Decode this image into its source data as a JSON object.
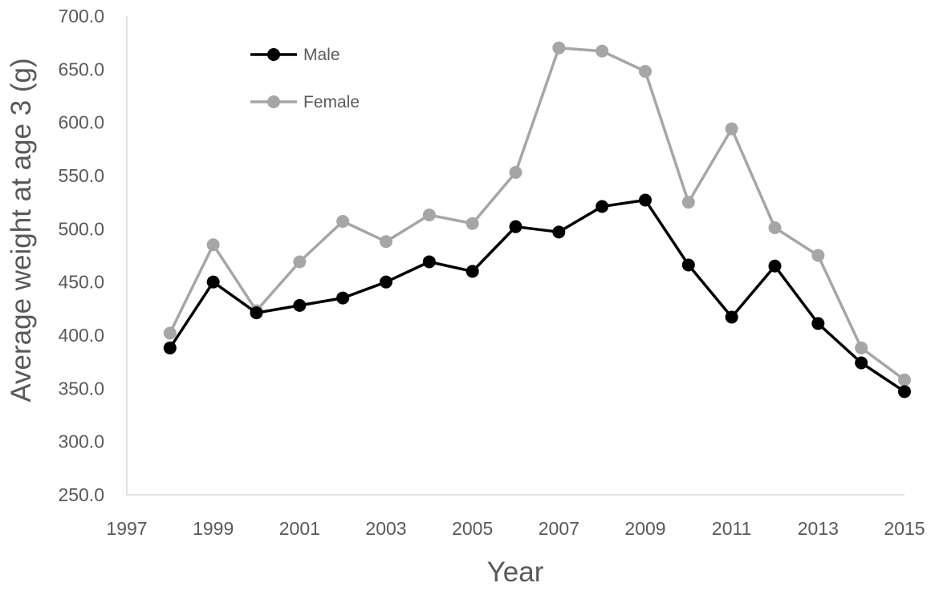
{
  "chart_data": {
    "type": "line",
    "title": "",
    "xlabel": "Year",
    "ylabel": "Average weight at age 3  (g)",
    "xlim": [
      1997,
      2015
    ],
    "ylim": [
      250,
      700
    ],
    "xticks": [
      1997,
      1999,
      2001,
      2003,
      2005,
      2007,
      2009,
      2011,
      2013,
      2015
    ],
    "yticks": [
      250,
      300,
      350,
      400,
      450,
      500,
      550,
      600,
      650,
      700
    ],
    "xtick_labels": [
      "1997",
      "1999",
      "2001",
      "2003",
      "2005",
      "2007",
      "2009",
      "2011",
      "2013",
      "2015"
    ],
    "ytick_labels": [
      "250.0",
      "300.0",
      "350.0",
      "400.0",
      "450.0",
      "500.0",
      "550.0",
      "600.0",
      "650.0",
      "700.0"
    ],
    "grid": false,
    "legend_position": "top-left",
    "x": [
      1998,
      1999,
      2000,
      2001,
      2002,
      2003,
      2004,
      2005,
      2006,
      2007,
      2008,
      2009,
      2010,
      2011,
      2012,
      2013,
      2014,
      2015
    ],
    "series": [
      {
        "name": "Male",
        "color": "#000000",
        "values": [
          388,
          450,
          421,
          428,
          435,
          450,
          469,
          460,
          502,
          497,
          521,
          527,
          466,
          417,
          465,
          411,
          374,
          347
        ]
      },
      {
        "name": "Female",
        "color": "#A6A6A6",
        "values": [
          402,
          485,
          423,
          469,
          507,
          488,
          513,
          505,
          553,
          670,
          667,
          648,
          525,
          594,
          501,
          475,
          388,
          358
        ]
      }
    ]
  }
}
